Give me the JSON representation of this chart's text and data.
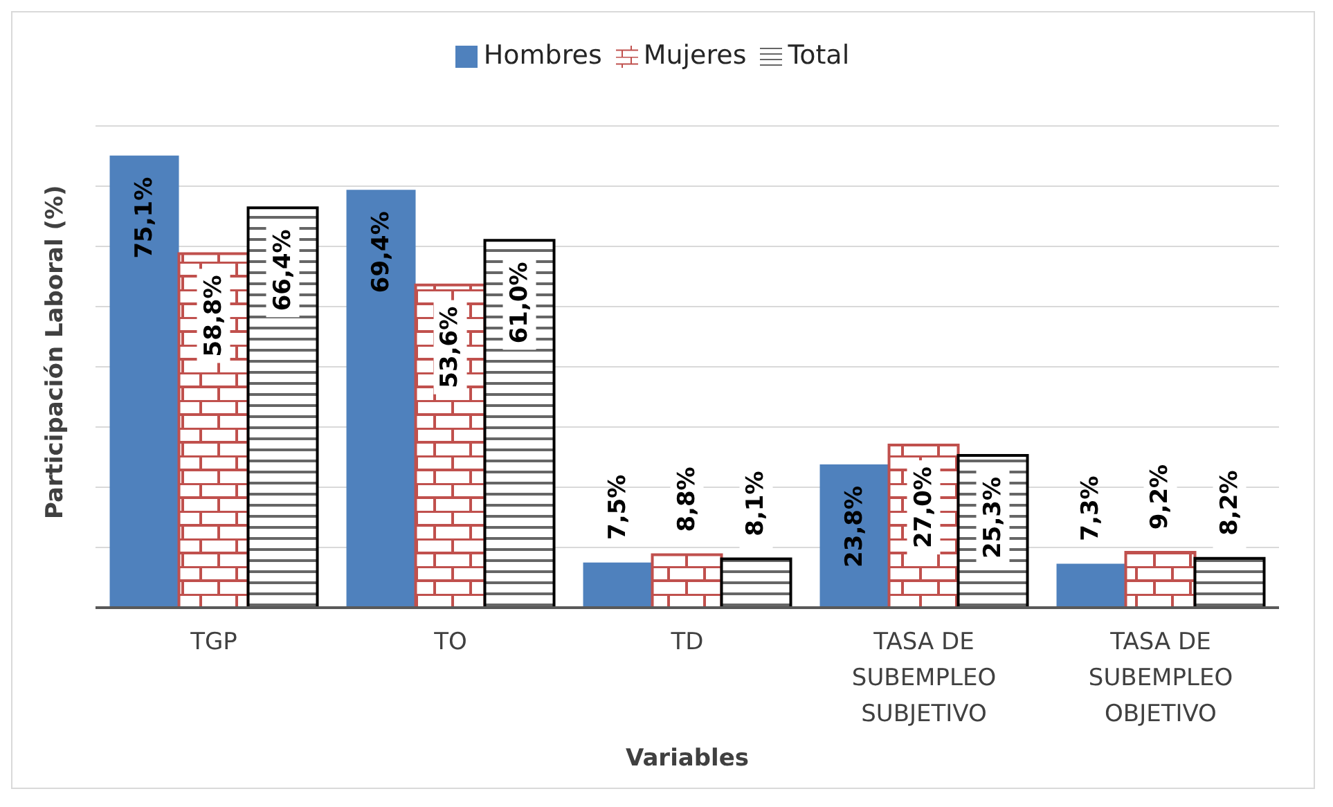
{
  "chart_data": {
    "type": "bar",
    "xlabel": "Variables",
    "ylabel": "Participación Laboral (%)",
    "categories": [
      "TGP",
      "TO",
      "TD",
      "TASA DE SUBEMPLEO SUBJETIVO",
      "TASA DE SUBEMPLEO OBJETIVO"
    ],
    "series": [
      {
        "name": "Hombres",
        "color": "#4f81bd",
        "values": [
          75.1,
          69.4,
          7.5,
          23.8,
          7.3
        ],
        "value_labels": [
          "75,1%",
          "69,4%",
          "7,5%",
          "23,8%",
          "7,3%"
        ]
      },
      {
        "name": "Mujeres",
        "color": "#c0504d",
        "values": [
          58.8,
          53.6,
          8.8,
          27.0,
          9.2
        ],
        "value_labels": [
          "58,8%",
          "53,6%",
          "8,8%",
          "27,0%",
          "9,2%"
        ]
      },
      {
        "name": "Total",
        "color": "#000000",
        "values": [
          66.4,
          61.0,
          8.1,
          25.3,
          8.2
        ],
        "value_labels": [
          "66,4%",
          "61,0%",
          "8,1%",
          "25,3%",
          "8,2%"
        ]
      }
    ],
    "ylim": [
      0,
      80
    ],
    "grid": "y",
    "legend": "top",
    "tick_labels": "x"
  }
}
